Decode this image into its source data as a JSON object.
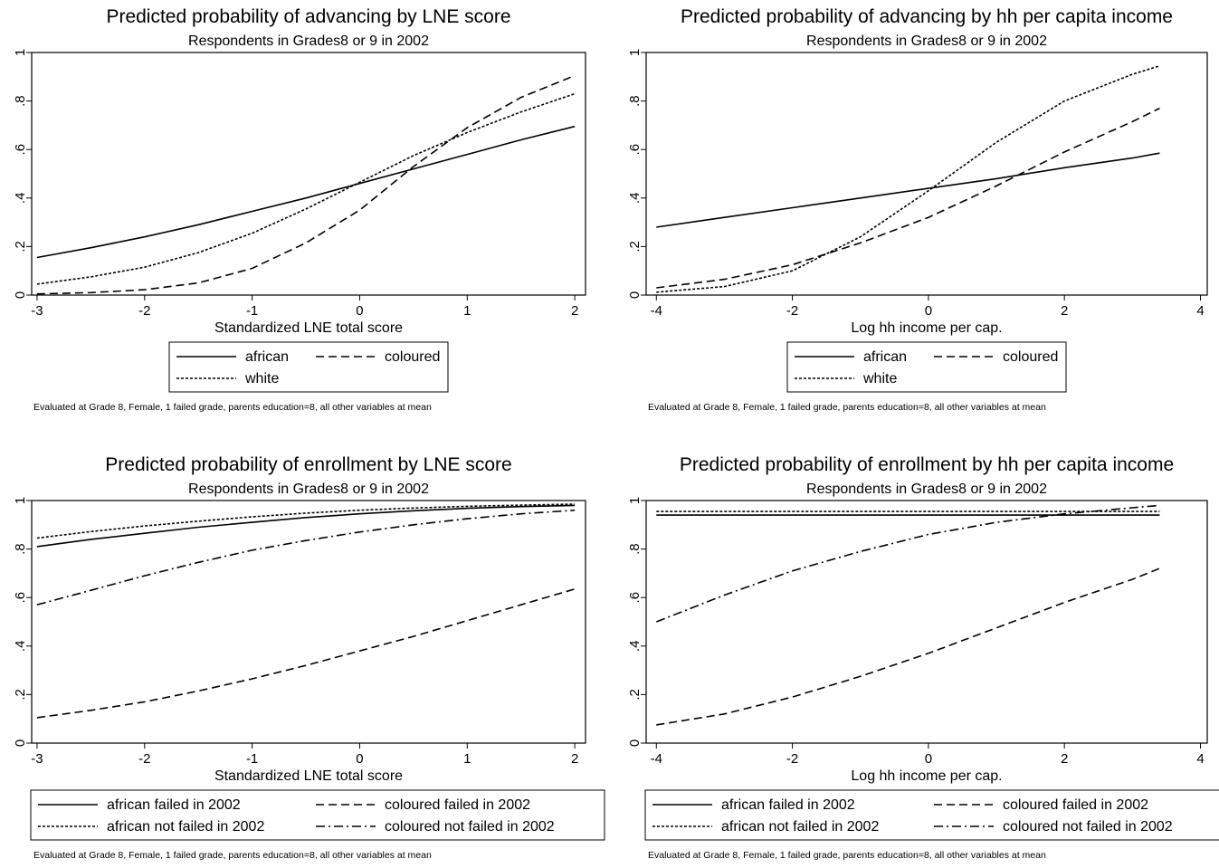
{
  "chart_data": [
    {
      "type": "line",
      "title": "Predicted probability of advancing by LNE score",
      "subtitle": "Respondents in Grades8 or 9 in 2002",
      "xlabel": "Standardized LNE total score",
      "ylabel": "",
      "xlim": [
        -3.05,
        2.1
      ],
      "ylim": [
        0,
        1
      ],
      "xticks": [
        -3,
        -2,
        -1,
        0,
        1,
        2
      ],
      "xtick_labels": [
        "-3",
        "-2",
        "-1",
        "0",
        "1",
        "2"
      ],
      "yticks": [
        0,
        0.2,
        0.4,
        0.6,
        0.8,
        1
      ],
      "ytick_labels": [
        "0",
        ".2",
        ".4",
        ".6",
        ".8",
        "1"
      ],
      "grid": false,
      "legend_columns": 2,
      "note": "Evaluated at Grade 8, Female, 1 failed grade, parents education=8, all other variables at mean",
      "series": [
        {
          "name": "african",
          "dash": "solid",
          "x": [
            -3,
            -2.5,
            -2,
            -1.5,
            -1,
            -0.5,
            0,
            0.5,
            1,
            1.5,
            2
          ],
          "y": [
            0.155,
            0.195,
            0.24,
            0.29,
            0.345,
            0.4,
            0.46,
            0.52,
            0.58,
            0.64,
            0.695
          ]
        },
        {
          "name": "coloured",
          "dash": "dash",
          "x": [
            -3,
            -2.5,
            -2,
            -1.5,
            -1,
            -0.5,
            0,
            0.5,
            1,
            1.5,
            2
          ],
          "y": [
            0.005,
            0.01,
            0.022,
            0.05,
            0.11,
            0.215,
            0.35,
            0.53,
            0.69,
            0.815,
            0.905
          ]
        },
        {
          "name": "white",
          "dash": "short",
          "x": [
            -3,
            -2.5,
            -2,
            -1.5,
            -1,
            -0.5,
            0,
            0.5,
            1,
            1.5,
            2
          ],
          "y": [
            0.045,
            0.075,
            0.115,
            0.175,
            0.255,
            0.355,
            0.465,
            0.575,
            0.67,
            0.755,
            0.83
          ]
        }
      ]
    },
    {
      "type": "line",
      "title": "Predicted probability of advancing by hh per capita income",
      "subtitle": "Respondents in Grades8 or 9 in 2002",
      "xlabel": "Log hh income per cap.",
      "ylabel": "",
      "xlim": [
        -4.15,
        4.1
      ],
      "ylim": [
        0,
        1
      ],
      "xticks": [
        -4,
        -2,
        0,
        2,
        4
      ],
      "xtick_labels": [
        "-4",
        "-2",
        "0",
        "2",
        "4"
      ],
      "yticks": [
        0,
        0.2,
        0.4,
        0.6,
        0.8,
        1
      ],
      "ytick_labels": [
        "0",
        ".2",
        ".4",
        ".6",
        ".8",
        "1"
      ],
      "grid": false,
      "legend_columns": 2,
      "note": "Evaluated at Grade 8, Female, 1 failed grade, parents education=8, all other variables at mean",
      "series": [
        {
          "name": "african",
          "dash": "solid",
          "x": [
            -4,
            -3,
            -2,
            -1,
            0,
            1,
            2,
            3,
            3.4
          ],
          "y": [
            0.28,
            0.32,
            0.36,
            0.4,
            0.44,
            0.48,
            0.525,
            0.565,
            0.585
          ]
        },
        {
          "name": "coloured",
          "dash": "dash",
          "x": [
            -4,
            -3,
            -2,
            -1,
            0,
            1,
            2,
            3,
            3.4
          ],
          "y": [
            0.03,
            0.065,
            0.125,
            0.215,
            0.32,
            0.45,
            0.59,
            0.715,
            0.77
          ]
        },
        {
          "name": "white",
          "dash": "short",
          "x": [
            -4,
            -3,
            -2,
            -1,
            0,
            1,
            2,
            3,
            3.4
          ],
          "y": [
            0.012,
            0.035,
            0.1,
            0.24,
            0.43,
            0.63,
            0.8,
            0.91,
            0.945
          ]
        }
      ]
    },
    {
      "type": "line",
      "title": "Predicted probability of enrollment by LNE score",
      "subtitle": "Respondents in Grades8 or 9 in 2002",
      "xlabel": "Standardized LNE total score",
      "ylabel": "",
      "xlim": [
        -3.05,
        2.1
      ],
      "ylim": [
        0,
        1
      ],
      "xticks": [
        -3,
        -2,
        -1,
        0,
        1,
        2
      ],
      "xtick_labels": [
        "-3",
        "-2",
        "-1",
        "0",
        "1",
        "2"
      ],
      "yticks": [
        0,
        0.2,
        0.4,
        0.6,
        0.8,
        1
      ],
      "ytick_labels": [
        "0",
        ".2",
        ".4",
        ".6",
        ".8",
        "1"
      ],
      "grid": false,
      "legend_columns": 2,
      "note": "Evaluated at Grade 8, Female, 1 failed grade, parents education=8, all other variables at mean",
      "series": [
        {
          "name": "african failed in 2002",
          "dash": "solid",
          "x": [
            -3,
            -2.5,
            -2,
            -1.5,
            -1,
            -0.5,
            0,
            0.5,
            1,
            1.5,
            2
          ],
          "y": [
            0.81,
            0.84,
            0.865,
            0.89,
            0.91,
            0.93,
            0.945,
            0.958,
            0.968,
            0.975,
            0.98
          ]
        },
        {
          "name": "coloured failed in 2002",
          "dash": "dash",
          "x": [
            -3,
            -2.5,
            -2,
            -1.5,
            -1,
            -0.5,
            0,
            0.5,
            1,
            1.5,
            2
          ],
          "y": [
            0.105,
            0.135,
            0.17,
            0.215,
            0.265,
            0.32,
            0.38,
            0.44,
            0.505,
            0.57,
            0.635
          ]
        },
        {
          "name": "african not failed in 2002",
          "dash": "short",
          "x": [
            -3,
            -2.5,
            -2,
            -1.5,
            -1,
            -0.5,
            0,
            0.5,
            1,
            1.5,
            2
          ],
          "y": [
            0.845,
            0.872,
            0.895,
            0.915,
            0.933,
            0.948,
            0.96,
            0.969,
            0.976,
            0.981,
            0.985
          ]
        },
        {
          "name": "coloured not failed in 2002",
          "dash": "dashdot",
          "x": [
            -3,
            -2.5,
            -2,
            -1.5,
            -1,
            -0.5,
            0,
            0.5,
            1,
            1.5,
            2
          ],
          "y": [
            0.57,
            0.63,
            0.69,
            0.745,
            0.795,
            0.835,
            0.87,
            0.9,
            0.925,
            0.945,
            0.96
          ]
        }
      ]
    },
    {
      "type": "line",
      "title": "Predicted probability of enrollment by hh per capita income",
      "subtitle": "Respondents in Grades8 or 9 in 2002",
      "xlabel": "Log hh income per cap.",
      "ylabel": "",
      "xlim": [
        -4.15,
        4.1
      ],
      "ylim": [
        0,
        1
      ],
      "xticks": [
        -4,
        -2,
        0,
        2,
        4
      ],
      "xtick_labels": [
        "-4",
        "-2",
        "0",
        "2",
        "4"
      ],
      "yticks": [
        0,
        0.2,
        0.4,
        0.6,
        0.8,
        1
      ],
      "ytick_labels": [
        "0",
        ".2",
        ".4",
        ".6",
        ".8",
        "1"
      ],
      "grid": false,
      "legend_columns": 2,
      "note": "Evaluated at Grade 8, Female, 1 failed grade, parents education=8, all other variables at mean",
      "series": [
        {
          "name": "african failed in 2002",
          "dash": "solid",
          "x": [
            -4,
            -3,
            -2,
            -1,
            0,
            1,
            2,
            3,
            3.4
          ],
          "y": [
            0.94,
            0.94,
            0.94,
            0.94,
            0.94,
            0.94,
            0.94,
            0.94,
            0.94
          ]
        },
        {
          "name": "coloured failed in 2002",
          "dash": "dash",
          "x": [
            -4,
            -3,
            -2,
            -1,
            0,
            1,
            2,
            3,
            3.4
          ],
          "y": [
            0.075,
            0.12,
            0.19,
            0.275,
            0.37,
            0.475,
            0.58,
            0.675,
            0.72
          ]
        },
        {
          "name": "african not failed in 2002",
          "dash": "short",
          "x": [
            -4,
            -3,
            -2,
            -1,
            0,
            1,
            2,
            3,
            3.4
          ],
          "y": [
            0.955,
            0.955,
            0.955,
            0.955,
            0.955,
            0.955,
            0.955,
            0.955,
            0.955
          ]
        },
        {
          "name": "coloured not failed in 2002",
          "dash": "dashdot",
          "x": [
            -4,
            -3,
            -2,
            -1,
            0,
            1,
            2,
            3,
            3.4
          ],
          "y": [
            0.5,
            0.61,
            0.71,
            0.79,
            0.86,
            0.91,
            0.945,
            0.97,
            0.98
          ]
        }
      ]
    }
  ]
}
